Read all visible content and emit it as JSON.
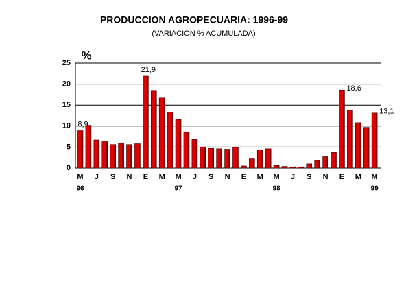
{
  "chart_data": {
    "type": "bar",
    "title": "PRODUCCION AGROPECUARIA: 1996-99",
    "subtitle": "(VARIACION % ACUMULADA)",
    "y_label": "%",
    "categories": [
      "M",
      null,
      "J",
      null,
      "S",
      null,
      "N",
      null,
      "E",
      null,
      "M",
      null,
      "M",
      null,
      "J",
      null,
      "S",
      null,
      "N",
      null,
      "E",
      null,
      "M",
      null,
      "M",
      null,
      "J",
      null,
      "S",
      null,
      "N",
      null,
      "E",
      null,
      "M",
      null,
      "M"
    ],
    "years": [
      "96",
      null,
      null,
      null,
      null,
      null,
      null,
      null,
      null,
      null,
      null,
      null,
      "97",
      null,
      null,
      null,
      null,
      null,
      null,
      null,
      null,
      null,
      null,
      null,
      "98",
      null,
      null,
      null,
      null,
      null,
      null,
      null,
      null,
      null,
      null,
      null,
      "99"
    ],
    "values": [
      8.9,
      10.2,
      6.7,
      6.3,
      5.6,
      5.9,
      5.6,
      5.8,
      21.9,
      18.5,
      16.7,
      13.3,
      11.6,
      8.5,
      6.8,
      5.0,
      4.7,
      4.6,
      4.5,
      4.9,
      0.5,
      2.2,
      4.3,
      4.6,
      0.6,
      0.4,
      0.3,
      0.3,
      1.0,
      1.8,
      2.7,
      3.7,
      18.6,
      13.8,
      10.8,
      9.7,
      13.1
    ],
    "value_labels": [
      "8,9",
      null,
      null,
      null,
      null,
      null,
      null,
      null,
      "21,9",
      null,
      null,
      null,
      null,
      null,
      null,
      null,
      null,
      null,
      null,
      null,
      null,
      null,
      null,
      null,
      null,
      null,
      null,
      null,
      null,
      null,
      null,
      null,
      "18,6",
      null,
      null,
      null,
      "13,1"
    ],
    "color": "#e00000",
    "ylim": [
      0,
      25
    ],
    "yticks": [
      0,
      5,
      10,
      15,
      20,
      25
    ],
    "grid": true
  }
}
